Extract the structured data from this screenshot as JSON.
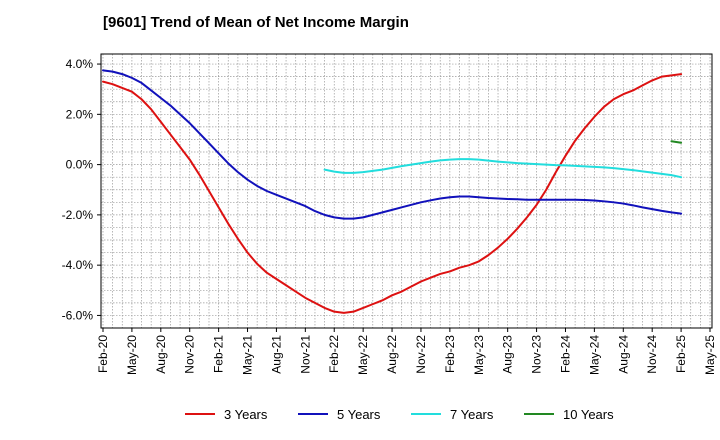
{
  "chart_data": {
    "type": "line",
    "title": "[9601]  Trend of Mean of Net Income Margin",
    "xlabel": "",
    "ylabel": "",
    "x_ticks": [
      "Feb-20",
      "May-20",
      "Aug-20",
      "Nov-20",
      "Feb-21",
      "May-21",
      "Aug-21",
      "Nov-21",
      "Feb-22",
      "May-22",
      "Aug-22",
      "Nov-22",
      "Feb-23",
      "May-23",
      "Aug-23",
      "Nov-23",
      "Feb-24",
      "May-24",
      "Aug-24",
      "Nov-24",
      "Feb-25",
      "May-25"
    ],
    "y_ticks": [
      "4.0%",
      "2.0%",
      "0.0%",
      "-2.0%",
      "-4.0%",
      "-6.0%"
    ],
    "y_tick_values": [
      4,
      2,
      0,
      -2,
      -4,
      -6
    ],
    "ylim": [
      -6.5,
      4.4
    ],
    "grid": true,
    "legend_position": "bottom",
    "series": [
      {
        "name": "3 Years",
        "color": "#dd1111",
        "x": [
          "Feb-20",
          "Mar-20",
          "Apr-20",
          "May-20",
          "Jun-20",
          "Jul-20",
          "Aug-20",
          "Sep-20",
          "Oct-20",
          "Nov-20",
          "Dec-20",
          "Jan-21",
          "Feb-21",
          "Mar-21",
          "Apr-21",
          "May-21",
          "Jun-21",
          "Jul-21",
          "Aug-21",
          "Sep-21",
          "Oct-21",
          "Nov-21",
          "Dec-21",
          "Jan-22",
          "Feb-22",
          "Mar-22",
          "Apr-22",
          "May-22",
          "Jun-22",
          "Jul-22",
          "Aug-22",
          "Sep-22",
          "Oct-22",
          "Nov-22",
          "Dec-22",
          "Jan-23",
          "Feb-23",
          "Mar-23",
          "Apr-23",
          "May-23",
          "Jun-23",
          "Jul-23",
          "Aug-23",
          "Sep-23",
          "Oct-23",
          "Nov-23",
          "Dec-23",
          "Jan-24",
          "Feb-24",
          "Mar-24",
          "Apr-24",
          "May-24",
          "Jun-24",
          "Jul-24",
          "Aug-24",
          "Sep-24",
          "Oct-24",
          "Nov-24",
          "Dec-24",
          "Jan-25",
          "Feb-25"
        ],
        "values": [
          3.3,
          3.2,
          3.05,
          2.9,
          2.6,
          2.2,
          1.7,
          1.2,
          0.7,
          0.2,
          -0.4,
          -1.05,
          -1.7,
          -2.35,
          -2.95,
          -3.5,
          -3.95,
          -4.3,
          -4.55,
          -4.8,
          -5.05,
          -5.3,
          -5.5,
          -5.7,
          -5.85,
          -5.9,
          -5.85,
          -5.7,
          -5.55,
          -5.4,
          -5.2,
          -5.05,
          -4.85,
          -4.65,
          -4.5,
          -4.35,
          -4.25,
          -4.1,
          -4.0,
          -3.85,
          -3.6,
          -3.3,
          -2.95,
          -2.55,
          -2.1,
          -1.6,
          -1.0,
          -0.3,
          0.35,
          0.95,
          1.45,
          1.9,
          2.3,
          2.6,
          2.8,
          2.95,
          3.15,
          3.35,
          3.5,
          3.55,
          3.6
        ]
      },
      {
        "name": "5 Years",
        "color": "#1111bb",
        "x": [
          "Feb-20",
          "Mar-20",
          "Apr-20",
          "May-20",
          "Jun-20",
          "Jul-20",
          "Aug-20",
          "Sep-20",
          "Oct-20",
          "Nov-20",
          "Dec-20",
          "Jan-21",
          "Feb-21",
          "Mar-21",
          "Apr-21",
          "May-21",
          "Jun-21",
          "Jul-21",
          "Aug-21",
          "Sep-21",
          "Oct-21",
          "Nov-21",
          "Dec-21",
          "Jan-22",
          "Feb-22",
          "Mar-22",
          "Apr-22",
          "May-22",
          "Jun-22",
          "Jul-22",
          "Aug-22",
          "Sep-22",
          "Oct-22",
          "Nov-22",
          "Dec-22",
          "Jan-23",
          "Feb-23",
          "Mar-23",
          "Apr-23",
          "May-23",
          "Jun-23",
          "Jul-23",
          "Aug-23",
          "Sep-23",
          "Oct-23",
          "Nov-23",
          "Dec-23",
          "Jan-24",
          "Feb-24",
          "Mar-24",
          "Apr-24",
          "May-24",
          "Jun-24",
          "Jul-24",
          "Aug-24",
          "Sep-24",
          "Oct-24",
          "Nov-24",
          "Dec-24",
          "Jan-25",
          "Feb-25"
        ],
        "values": [
          3.75,
          3.7,
          3.6,
          3.45,
          3.25,
          2.95,
          2.65,
          2.35,
          2.0,
          1.65,
          1.25,
          0.85,
          0.45,
          0.05,
          -0.3,
          -0.6,
          -0.85,
          -1.05,
          -1.2,
          -1.35,
          -1.5,
          -1.65,
          -1.85,
          -2.0,
          -2.1,
          -2.15,
          -2.15,
          -2.1,
          -2.0,
          -1.9,
          -1.8,
          -1.7,
          -1.6,
          -1.5,
          -1.42,
          -1.35,
          -1.3,
          -1.27,
          -1.27,
          -1.3,
          -1.33,
          -1.35,
          -1.37,
          -1.38,
          -1.4,
          -1.4,
          -1.4,
          -1.4,
          -1.4,
          -1.4,
          -1.41,
          -1.43,
          -1.46,
          -1.5,
          -1.55,
          -1.62,
          -1.7,
          -1.77,
          -1.84,
          -1.9,
          -1.95
        ]
      },
      {
        "name": "7 Years",
        "color": "#22dddd",
        "x": [
          "Jan-22",
          "Feb-22",
          "Mar-22",
          "Apr-22",
          "May-22",
          "Jun-22",
          "Jul-22",
          "Aug-22",
          "Sep-22",
          "Oct-22",
          "Nov-22",
          "Dec-22",
          "Jan-23",
          "Feb-23",
          "Mar-23",
          "Apr-23",
          "May-23",
          "Jun-23",
          "Jul-23",
          "Aug-23",
          "Sep-23",
          "Oct-23",
          "Nov-23",
          "Dec-23",
          "Jan-24",
          "Feb-24",
          "Mar-24",
          "Apr-24",
          "May-24",
          "Jun-24",
          "Jul-24",
          "Aug-24",
          "Sep-24",
          "Oct-24",
          "Nov-24",
          "Dec-24",
          "Jan-25",
          "Feb-25"
        ],
        "values": [
          -0.2,
          -0.28,
          -0.33,
          -0.33,
          -0.3,
          -0.25,
          -0.2,
          -0.13,
          -0.06,
          0.0,
          0.06,
          0.12,
          0.17,
          0.2,
          0.22,
          0.22,
          0.2,
          0.16,
          0.12,
          0.09,
          0.06,
          0.04,
          0.02,
          0.0,
          -0.02,
          -0.03,
          -0.05,
          -0.07,
          -0.09,
          -0.11,
          -0.14,
          -0.18,
          -0.22,
          -0.27,
          -0.32,
          -0.37,
          -0.42,
          -0.5
        ]
      },
      {
        "name": "10 Years",
        "color": "#228822",
        "x": [
          "Jan-25",
          "Feb-25"
        ],
        "values": [
          0.93,
          0.87
        ]
      }
    ]
  }
}
